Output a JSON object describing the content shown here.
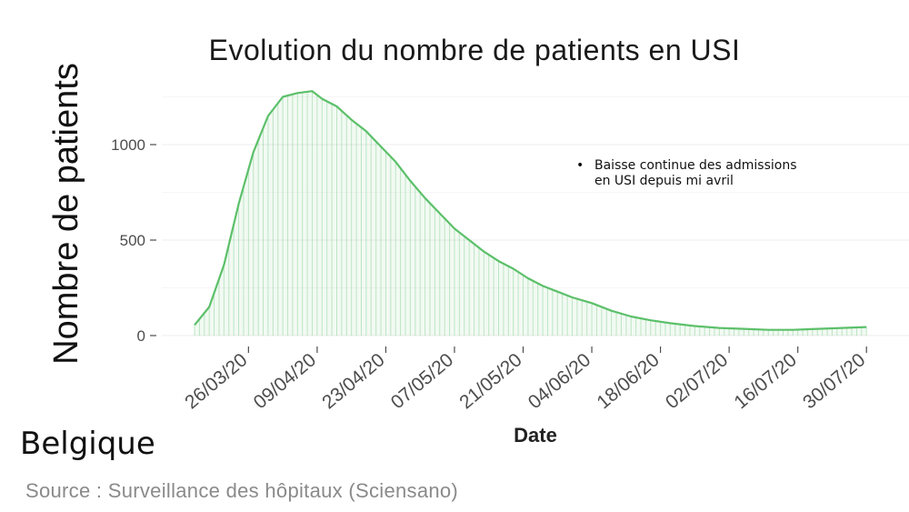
{
  "chart_data": {
    "type": "area",
    "title": "Evolution du nombre de patients en USI",
    "xlabel": "Date",
    "ylabel": "Nombre de patients",
    "x_tick_labels": [
      "26/03/20",
      "09/04/20",
      "23/04/20",
      "07/05/20",
      "21/05/20",
      "04/06/20",
      "18/06/20",
      "02/07/20",
      "16/07/20",
      "30/07/20"
    ],
    "y_ticks": [
      0,
      500,
      1000
    ],
    "ylim": [
      -40,
      1320
    ],
    "xlim": [
      "2020-03-15",
      "2020-08-01"
    ],
    "grid": true,
    "color": "#5cc06a",
    "series": [
      {
        "x": [
          "2020-03-15",
          "2020-03-18",
          "2020-03-21",
          "2020-03-24",
          "2020-03-27",
          "2020-03-30",
          "2020-04-02",
          "2020-04-05",
          "2020-04-08",
          "2020-04-10",
          "2020-04-13",
          "2020-04-16",
          "2020-04-19",
          "2020-04-22",
          "2020-04-25",
          "2020-04-28",
          "2020-05-01",
          "2020-05-04",
          "2020-05-07",
          "2020-05-10",
          "2020-05-13",
          "2020-05-16",
          "2020-05-19",
          "2020-05-22",
          "2020-05-25",
          "2020-05-28",
          "2020-05-31",
          "2020-06-04",
          "2020-06-08",
          "2020-06-12",
          "2020-06-16",
          "2020-06-20",
          "2020-06-25",
          "2020-06-30",
          "2020-07-05",
          "2020-07-10",
          "2020-07-15",
          "2020-07-20",
          "2020-07-25",
          "2020-07-30"
        ],
        "values": [
          55,
          150,
          370,
          690,
          960,
          1150,
          1250,
          1270,
          1280,
          1240,
          1200,
          1130,
          1070,
          990,
          910,
          810,
          720,
          640,
          560,
          500,
          440,
          390,
          350,
          300,
          260,
          230,
          200,
          170,
          130,
          100,
          80,
          65,
          50,
          40,
          35,
          30,
          30,
          35,
          40,
          45
        ]
      }
    ],
    "annotation": "Baisse continue des admissions en USI depuis mi avril"
  },
  "region": "Belgique",
  "source": "Source : Surveillance des hôpitaux (Sciensano)"
}
